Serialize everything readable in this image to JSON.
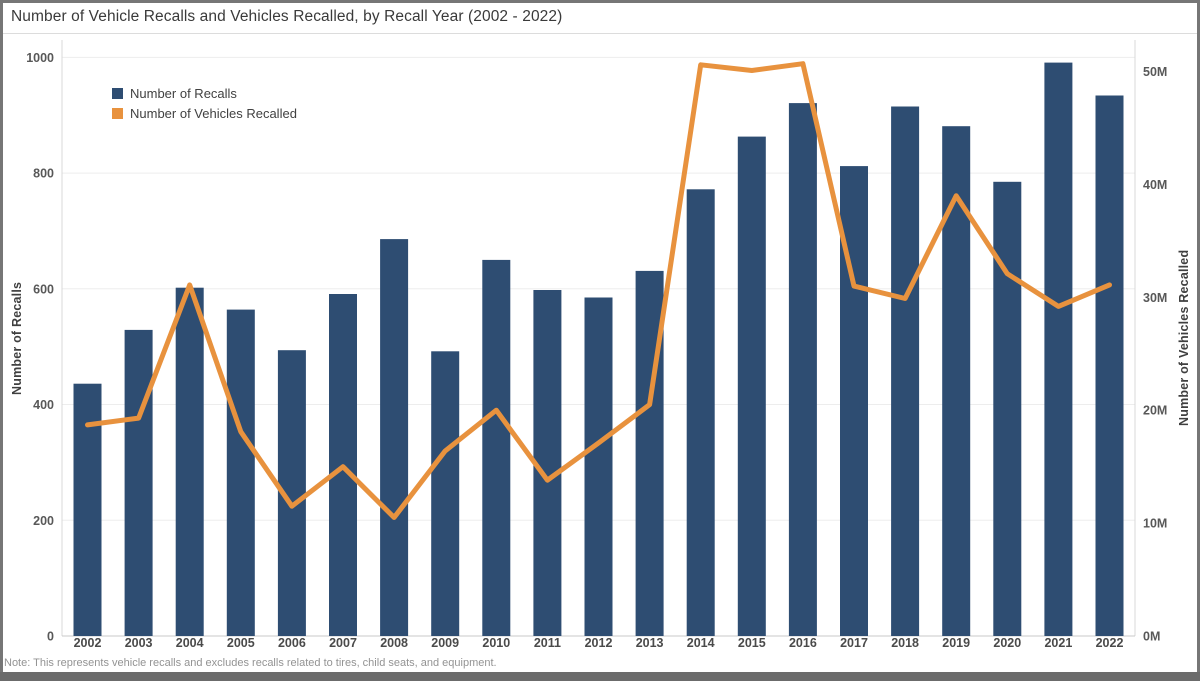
{
  "title": "Number of Vehicle Recalls and Vehicles Recalled, by Recall Year (2002 - 2022)",
  "note": "Note: This represents vehicle recalls and excludes recalls related to tires, child seats, and equipment.",
  "legend": {
    "recalls_label": "Number of Recalls",
    "vehicles_label": "Number of Vehicles Recalled"
  },
  "colors": {
    "bar": "#2e4d72",
    "line": "#e8923e",
    "gridline": "#ededed",
    "axis_line": "#d8d8d8",
    "baseline": "#c8c8c8"
  },
  "chart_data": {
    "type": "bar",
    "subtype": "bar-and-line-dual-axis",
    "title": "Number of Vehicle Recalls and Vehicles Recalled, by Recall Year (2002 - 2022)",
    "categories": [
      "2002",
      "2003",
      "2004",
      "2005",
      "2006",
      "2007",
      "2008",
      "2009",
      "2010",
      "2011",
      "2012",
      "2013",
      "2014",
      "2015",
      "2016",
      "2017",
      "2018",
      "2019",
      "2020",
      "2021",
      "2022"
    ],
    "series": [
      {
        "name": "Number of Recalls",
        "type": "bar",
        "axis": "left",
        "values": [
          436,
          529,
          602,
          564,
          494,
          591,
          686,
          492,
          650,
          598,
          585,
          631,
          772,
          863,
          921,
          812,
          915,
          881,
          785,
          991,
          934
        ]
      },
      {
        "name": "Number of Vehicles Recalled",
        "type": "line",
        "axis": "right",
        "unit": "millions",
        "values": [
          18.7,
          19.3,
          31.1,
          18.1,
          11.5,
          15.0,
          10.5,
          16.4,
          20.0,
          13.8,
          17.1,
          20.5,
          50.6,
          50.1,
          50.7,
          31.0,
          29.9,
          39.0,
          32.1,
          29.2,
          31.1
        ]
      }
    ],
    "left_axis": {
      "label": "Number of Recalls",
      "ticks": [
        "0",
        "200",
        "400",
        "600",
        "800",
        "1000"
      ],
      "tick_values": [
        0,
        200,
        400,
        600,
        800,
        1000
      ],
      "range": [
        0,
        1030
      ]
    },
    "right_axis": {
      "label": "Number of Vehicles Recalled",
      "ticks": [
        "0M",
        "10M",
        "20M",
        "30M",
        "40M",
        "50M"
      ],
      "tick_values": [
        0,
        10,
        20,
        30,
        40,
        50
      ],
      "range": [
        0,
        52.8
      ]
    },
    "grid": "horizontal-light",
    "legend_position": "top-left-inside"
  }
}
